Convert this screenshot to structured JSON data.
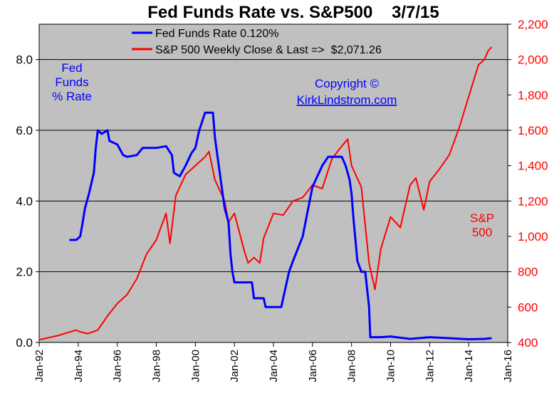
{
  "chart_data": {
    "type": "line",
    "title": "Fed Funds Rate vs. S&P500    3/7/15",
    "left_axis": {
      "ticks": [
        "0.0",
        "2.0",
        "4.0",
        "6.0",
        "8.0"
      ],
      "ylim": [
        0,
        9
      ],
      "label_lines": [
        "Fed",
        "Funds",
        "% Rate"
      ]
    },
    "right_axis": {
      "ticks": [
        "400",
        "600",
        "800",
        "1,000",
        "1,200",
        "1,400",
        "1,600",
        "1,800",
        "2,000",
        "2,200"
      ],
      "ylim": [
        400,
        2200
      ],
      "label_lines": [
        "S&P",
        "500"
      ]
    },
    "x_ticks": [
      "Jan-92",
      "Jan-94",
      "Jan-96",
      "Jan-98",
      "Jan-00",
      "Jan-02",
      "Jan-04",
      "Jan-06",
      "Jan-08",
      "Jan-10",
      "Jan-12",
      "Jan-14",
      "Jan-16"
    ],
    "xlim": [
      1992.0,
      2016.0
    ],
    "grid": true,
    "legend_position": "top-center",
    "annotation": {
      "line1": "Copyright ©",
      "line2": "KirkLindstrom.com"
    },
    "series": [
      {
        "name": "Fed Funds Rate 0.120%",
        "axis": "left",
        "color": "#0000ff",
        "x": [
          1993.55,
          1993.9,
          1994.1,
          1994.2,
          1994.35,
          1994.55,
          1994.8,
          1994.9,
          1995.0,
          1995.2,
          1995.5,
          1995.6,
          1996.0,
          1996.3,
          1996.5,
          1997.0,
          1997.3,
          1997.6,
          1998.0,
          1998.5,
          1998.8,
          1998.9,
          1999.2,
          1999.5,
          1999.8,
          2000.0,
          2000.2,
          2000.5,
          2000.9,
          2001.0,
          2001.2,
          2001.4,
          2001.5,
          2001.7,
          2001.8,
          2001.9,
          2002.0,
          2002.5,
          2002.9,
          2003.0,
          2003.5,
          2003.6,
          2004.0,
          2004.4,
          2004.5,
          2004.8,
          2005.0,
          2005.5,
          2006.0,
          2006.5,
          2006.8,
          2007.0,
          2007.5,
          2007.7,
          2007.9,
          2008.0,
          2008.1,
          2008.3,
          2008.5,
          2008.7,
          2008.9,
          2008.96,
          2009.5,
          2010.0,
          2011.0,
          2012.0,
          2013.0,
          2014.0,
          2014.8,
          2015.18
        ],
        "values": [
          2.9,
          2.9,
          3.0,
          3.3,
          3.8,
          4.2,
          4.8,
          5.5,
          6.0,
          5.9,
          6.0,
          5.7,
          5.6,
          5.3,
          5.25,
          5.3,
          5.5,
          5.5,
          5.5,
          5.55,
          5.3,
          4.8,
          4.7,
          5.0,
          5.35,
          5.5,
          6.0,
          6.5,
          6.5,
          5.8,
          5.0,
          4.2,
          3.8,
          3.4,
          2.5,
          2.0,
          1.7,
          1.7,
          1.7,
          1.25,
          1.25,
          1.0,
          1.0,
          1.0,
          1.25,
          2.0,
          2.3,
          3.0,
          4.4,
          5.0,
          5.25,
          5.25,
          5.25,
          5.0,
          4.6,
          4.2,
          3.5,
          2.3,
          2.0,
          2.0,
          1.0,
          0.15,
          0.15,
          0.17,
          0.1,
          0.15,
          0.12,
          0.09,
          0.1,
          0.12
        ]
      },
      {
        "name": "S&P 500 Weekly Close & Last =>  $2,071.26",
        "axis": "right",
        "color": "#ff0000",
        "x": [
          1992.0,
          1993.0,
          1993.9,
          1994.1,
          1994.5,
          1995.0,
          1995.5,
          1996.0,
          1996.5,
          1997.0,
          1997.5,
          1998.0,
          1998.5,
          1998.7,
          1999.0,
          1999.5,
          2000.0,
          2000.5,
          2000.7,
          2001.0,
          2001.5,
          2001.7,
          2002.0,
          2002.5,
          2002.7,
          2003.0,
          2003.3,
          2003.5,
          2004.0,
          2004.5,
          2005.0,
          2005.5,
          2006.0,
          2006.5,
          2007.0,
          2007.5,
          2007.8,
          2008.0,
          2008.5,
          2008.9,
          2009.2,
          2009.5,
          2010.0,
          2010.5,
          2011.0,
          2011.3,
          2011.7,
          2012.0,
          2012.5,
          2013.0,
          2013.5,
          2014.0,
          2014.5,
          2014.8,
          2015.0,
          2015.18
        ],
        "values": [
          415,
          440,
          470,
          460,
          450,
          470,
          550,
          620,
          670,
          760,
          900,
          980,
          1130,
          960,
          1230,
          1350,
          1400,
          1450,
          1480,
          1320,
          1200,
          1080,
          1130,
          920,
          850,
          880,
          850,
          990,
          1130,
          1120,
          1200,
          1220,
          1290,
          1270,
          1440,
          1510,
          1550,
          1400,
          1280,
          850,
          700,
          930,
          1110,
          1050,
          1290,
          1330,
          1150,
          1310,
          1380,
          1460,
          1610,
          1790,
          1970,
          2000,
          2050,
          2071
        ]
      }
    ]
  }
}
